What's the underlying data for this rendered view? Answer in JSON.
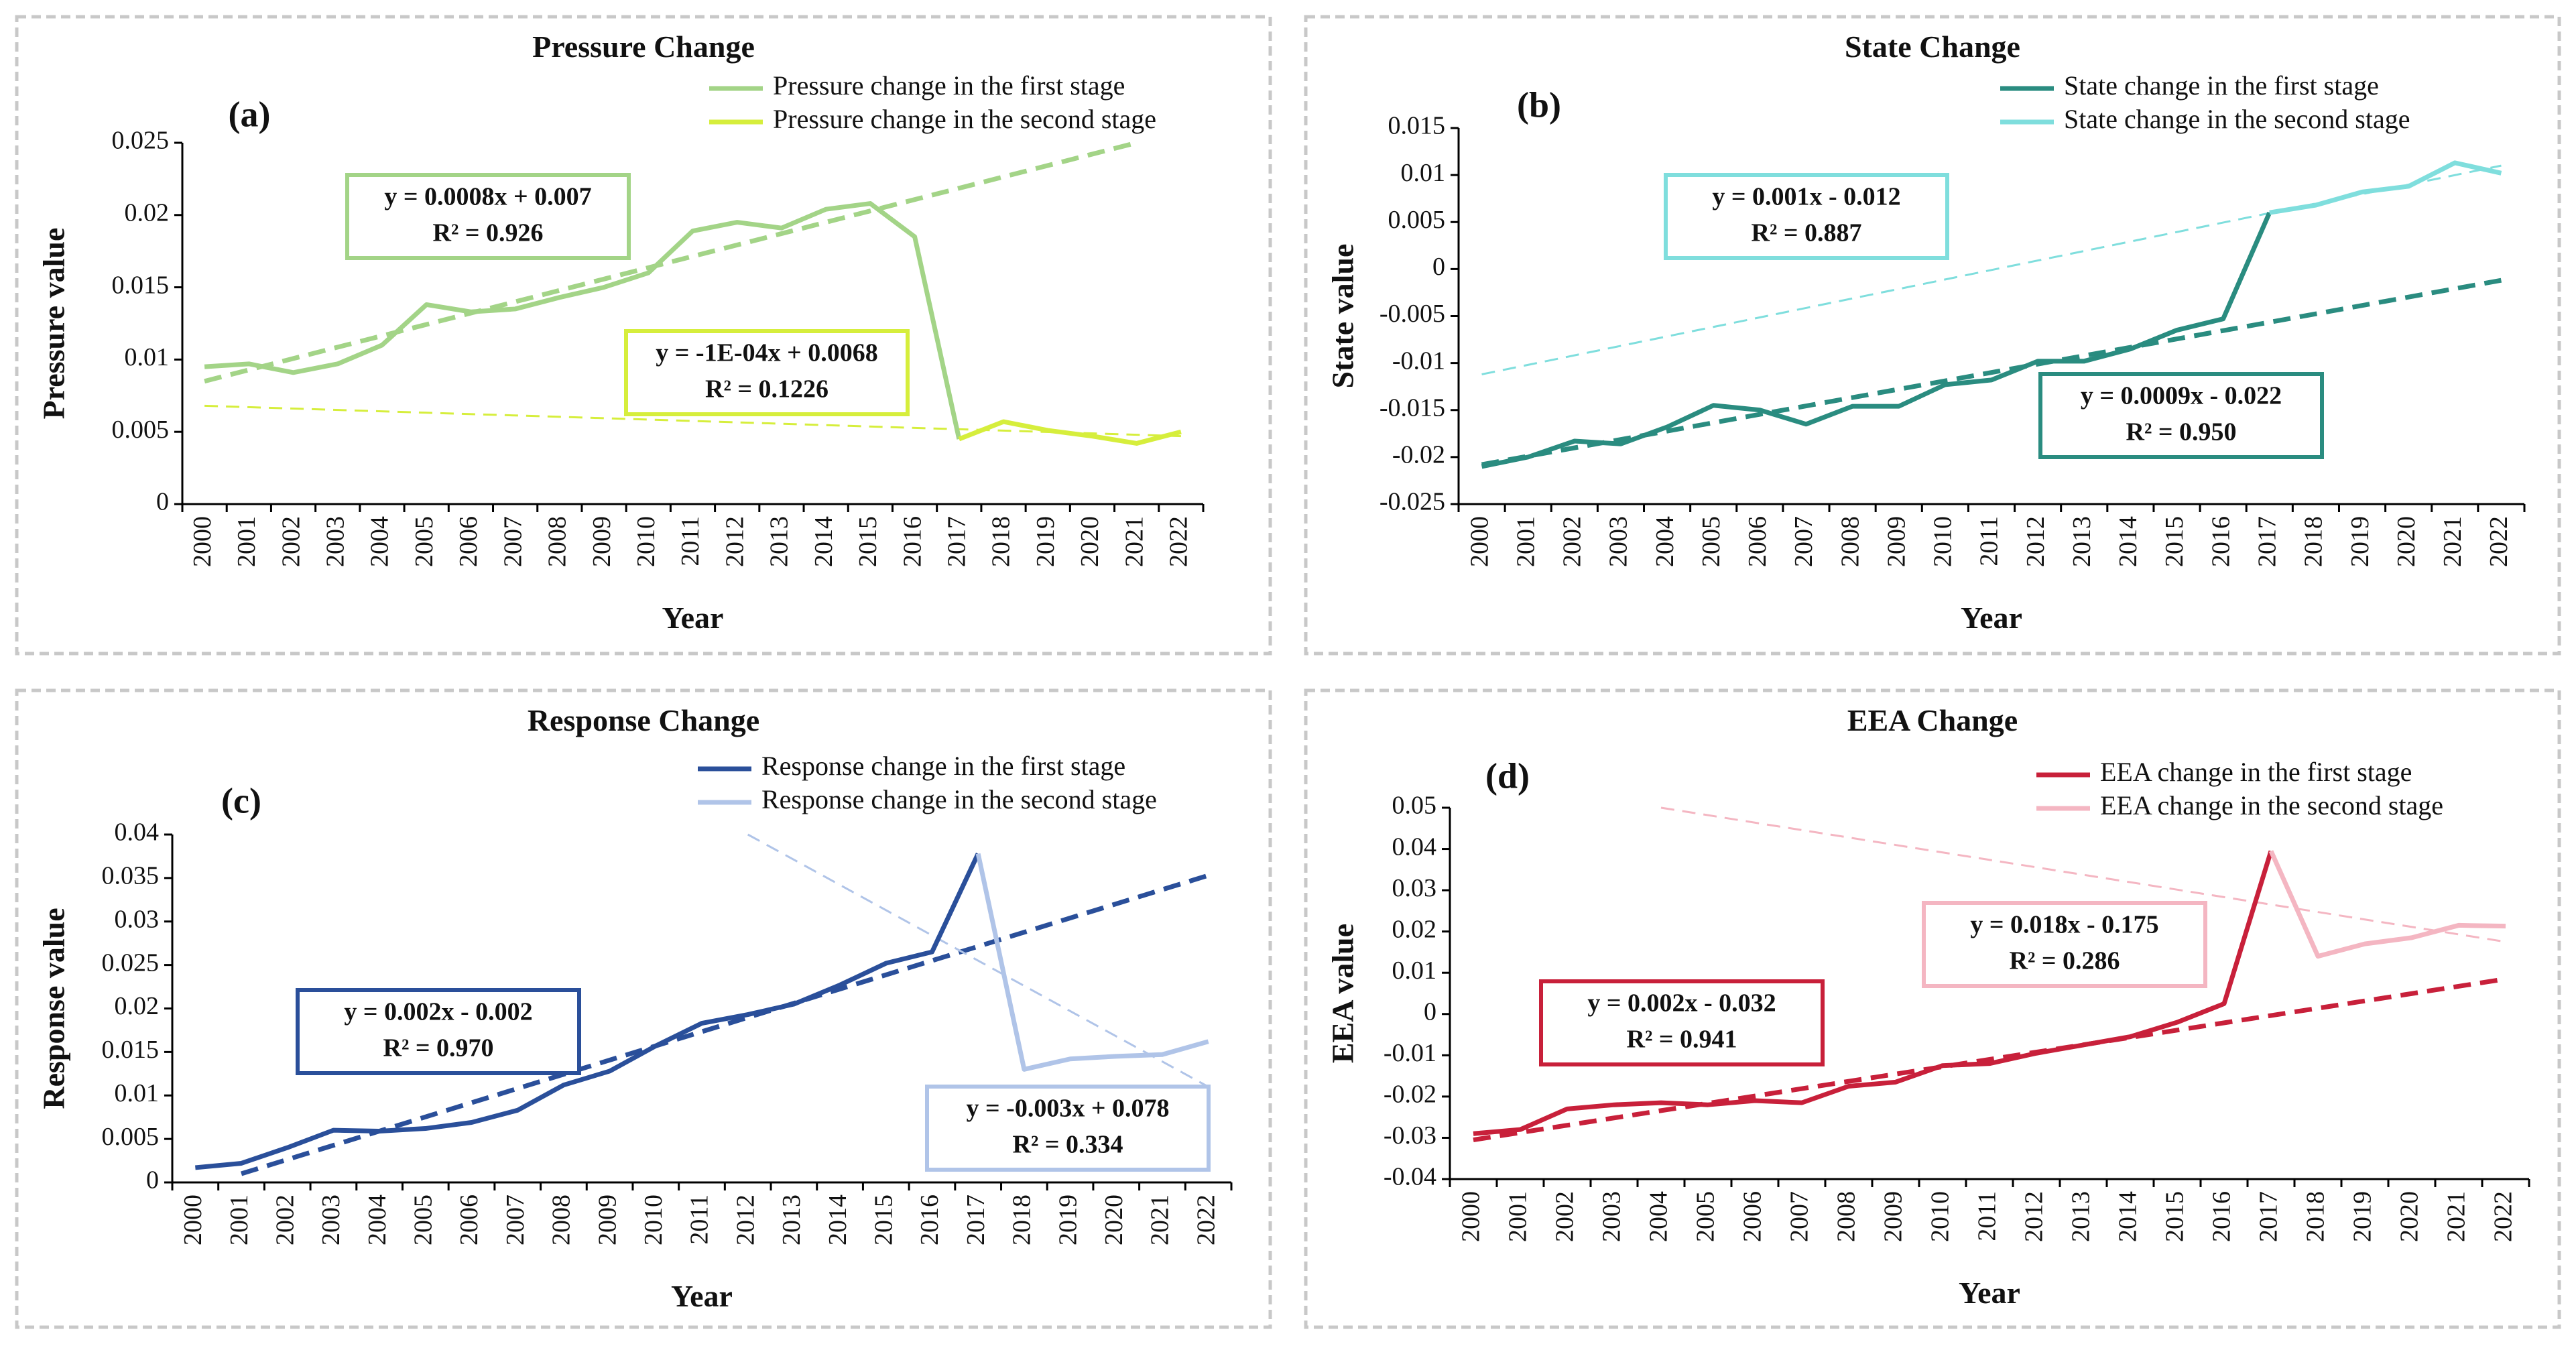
{
  "chart_data": [
    {
      "type": "line",
      "title": "Pressure Change",
      "panel_label": "(a)",
      "xlabel": "Year",
      "ylabel": "Pressure value",
      "categories": [
        "2000",
        "2001",
        "2002",
        "2003",
        "2004",
        "2005",
        "2006",
        "2007",
        "2008",
        "2009",
        "2010",
        "2011",
        "2012",
        "2013",
        "2014",
        "2015",
        "2016",
        "2017",
        "2018",
        "2019",
        "2020",
        "2021",
        "2022"
      ],
      "ylim": [
        0,
        0.025
      ],
      "yticks": [
        0,
        0.005,
        0.01,
        0.015,
        0.02,
        0.025
      ],
      "series": [
        {
          "name": "Pressure change in the first stage",
          "color": "#a3d487",
          "values": [
            0.0095,
            0.0097,
            0.0091,
            0.0097,
            0.011,
            0.0138,
            0.0133,
            0.0135,
            0.0143,
            0.015,
            0.016,
            0.0189,
            0.0195,
            0.0191,
            0.0204,
            0.0208,
            0.0185,
            0.0045,
            null,
            null,
            null,
            null,
            null
          ]
        },
        {
          "name": "Pressure change in the second stage",
          "color": "#d6ee3c",
          "values": [
            null,
            null,
            null,
            null,
            null,
            null,
            null,
            null,
            null,
            null,
            null,
            null,
            null,
            null,
            null,
            null,
            null,
            0.0045,
            0.0057,
            0.0051,
            0.0047,
            0.0042,
            0.005
          ]
        }
      ],
      "trendlines": [
        {
          "color": "#a3d487",
          "x": [
            "2000",
            "2021"
          ],
          "values": [
            0.0085,
            0.025
          ],
          "equation": "y = 0.0008x + 0.007",
          "r2": "R² = 0.926"
        },
        {
          "color": "#d6ee3c",
          "x": [
            "2000",
            "2022"
          ],
          "values": [
            0.0068,
            0.0047
          ],
          "equation": "y = -1E-04x + 0.0068",
          "r2": "R² = 0.1226"
        }
      ]
    },
    {
      "type": "line",
      "title": "State Change",
      "panel_label": "(b)",
      "xlabel": "Year",
      "ylabel": "State value",
      "categories": [
        "2000",
        "2001",
        "2002",
        "2003",
        "2004",
        "2005",
        "2006",
        "2007",
        "2008",
        "2009",
        "2010",
        "2011",
        "2012",
        "2013",
        "2014",
        "2015",
        "2016",
        "2017",
        "2018",
        "2019",
        "2020",
        "2021",
        "2022"
      ],
      "ylim": [
        -0.025,
        0.015
      ],
      "yticks": [
        -0.025,
        -0.02,
        -0.015,
        -0.01,
        -0.005,
        0,
        0.005,
        0.01,
        0.015
      ],
      "series": [
        {
          "name": "State change in the first stage",
          "color": "#2a8c80",
          "values": [
            -0.021,
            -0.02,
            -0.0183,
            -0.0186,
            -0.0168,
            -0.0145,
            -0.015,
            -0.0165,
            -0.0146,
            -0.0146,
            -0.0123,
            -0.0118,
            -0.0098,
            -0.0098,
            -0.0085,
            -0.0065,
            -0.0053,
            0.006,
            null,
            null,
            null,
            null,
            null
          ]
        },
        {
          "name": "State change in the second stage",
          "color": "#7fdedd",
          "values": [
            null,
            null,
            null,
            null,
            null,
            null,
            null,
            null,
            null,
            null,
            null,
            null,
            null,
            null,
            null,
            null,
            null,
            0.006,
            0.0068,
            0.0082,
            0.0088,
            0.0113,
            0.0102
          ]
        }
      ],
      "trendlines": [
        {
          "color": "#2a8c80",
          "x": [
            "2000",
            "2022"
          ],
          "values": [
            -0.0208,
            -0.0012
          ],
          "equation": "y = 0.0009x - 0.022",
          "r2": "R² = 0.950"
        },
        {
          "color": "#7fdedd",
          "x": [
            "2000",
            "2022"
          ],
          "values": [
            -0.0112,
            0.011
          ],
          "equation": "y = 0.001x - 0.012",
          "r2": "R² = 0.887"
        }
      ]
    },
    {
      "type": "line",
      "title": "Response Change",
      "panel_label": "(c)",
      "xlabel": "Year",
      "ylabel": "Response value",
      "categories": [
        "2000",
        "2001",
        "2002",
        "2003",
        "2004",
        "2005",
        "2006",
        "2007",
        "2008",
        "2009",
        "2010",
        "2011",
        "2012",
        "2013",
        "2014",
        "2015",
        "2016",
        "2017",
        "2018",
        "2019",
        "2020",
        "2021",
        "2022"
      ],
      "ylim": [
        0,
        0.04
      ],
      "yticks": [
        0,
        0.005,
        0.01,
        0.015,
        0.02,
        0.025,
        0.03,
        0.035,
        0.04
      ],
      "series": [
        {
          "name": "Response change in the first stage",
          "color": "#2a4f9a",
          "values": [
            0.0017,
            0.0022,
            0.004,
            0.006,
            0.0059,
            0.0062,
            0.0069,
            0.0083,
            0.0112,
            0.0128,
            0.0157,
            0.0183,
            0.0193,
            0.0205,
            0.0227,
            0.0252,
            0.0265,
            0.0378,
            null,
            null,
            null,
            null,
            null
          ]
        },
        {
          "name": "Response change in the second stage",
          "color": "#b0c4e8",
          "values": [
            null,
            null,
            null,
            null,
            null,
            null,
            null,
            null,
            null,
            null,
            null,
            null,
            null,
            null,
            null,
            null,
            null,
            0.0378,
            0.013,
            0.0142,
            0.0145,
            0.0147,
            0.0162
          ]
        }
      ],
      "trendlines": [
        {
          "color": "#2a4f9a",
          "x": [
            "2001",
            "2022"
          ],
          "values": [
            0.001,
            0.0353
          ],
          "equation": "y = 0.002x - 0.002",
          "r2": "R² = 0.970"
        },
        {
          "color": "#b0c4e8",
          "x": [
            "2012",
            "2022"
          ],
          "values": [
            0.04,
            0.011
          ],
          "equation": "y = -0.003x + 0.078",
          "r2": "R² = 0.334"
        }
      ]
    },
    {
      "type": "line",
      "title": "EEA Change",
      "panel_label": "(d)",
      "xlabel": "Year",
      "ylabel": "EEA value",
      "categories": [
        "2000",
        "2001",
        "2002",
        "2003",
        "2004",
        "2005",
        "2006",
        "2007",
        "2008",
        "2009",
        "2010",
        "2011",
        "2012",
        "2013",
        "2014",
        "2015",
        "2016",
        "2017",
        "2018",
        "2019",
        "2020",
        "2021",
        "2022"
      ],
      "ylim": [
        -0.04,
        0.05
      ],
      "yticks": [
        -0.04,
        -0.03,
        -0.02,
        -0.01,
        0,
        0.01,
        0.02,
        0.03,
        0.04,
        0.05
      ],
      "series": [
        {
          "name": "EEA change in the first stage",
          "color": "#c8203a",
          "values": [
            -0.029,
            -0.028,
            -0.023,
            -0.022,
            -0.0215,
            -0.022,
            -0.021,
            -0.0215,
            -0.0175,
            -0.0165,
            -0.0125,
            -0.012,
            -0.0095,
            -0.0075,
            -0.0055,
            -0.002,
            0.0025,
            0.0395,
            null,
            null,
            null,
            null,
            null
          ]
        },
        {
          "name": "EEA change in the second stage",
          "color": "#f4b6c2",
          "values": [
            null,
            null,
            null,
            null,
            null,
            null,
            null,
            null,
            null,
            null,
            null,
            null,
            null,
            null,
            null,
            null,
            null,
            0.0395,
            0.014,
            0.017,
            0.0185,
            0.0215,
            0.0213
          ]
        }
      ],
      "trendlines": [
        {
          "color": "#c8203a",
          "x": [
            "2000",
            "2022"
          ],
          "values": [
            -0.0305,
            0.0085
          ],
          "equation": "y = 0.002x - 0.032",
          "r2": "R² = 0.941"
        },
        {
          "color": "#f4b6c2",
          "x": [
            "2004",
            "2022"
          ],
          "values": [
            0.05,
            0.0175
          ],
          "equation": "y = 0.018x - 0.175",
          "r2": "R² = 0.286"
        }
      ]
    }
  ]
}
